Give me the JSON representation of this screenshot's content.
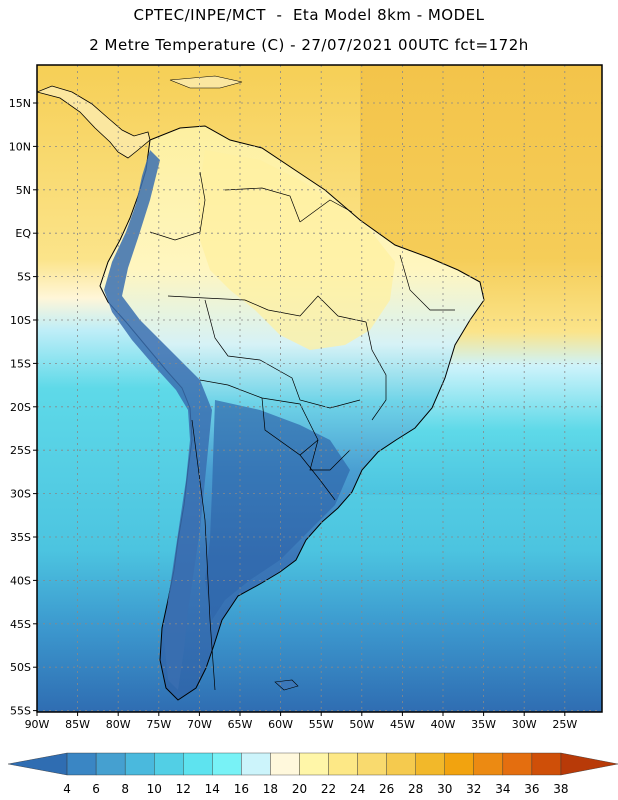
{
  "title_line1": "CPTEC/INPE/MCT  -  Eta Model 8km - MODEL",
  "title_line2": "2 Metre Temperature (C) - 27/07/2021 00UTC fct=172h",
  "lat_labels": [
    "15N",
    "10N",
    "5N",
    "EQ",
    "5S",
    "10S",
    "15S",
    "20S",
    "25S",
    "30S",
    "35S",
    "40S",
    "45S",
    "50S",
    "55S"
  ],
  "lon_labels": [
    "90W",
    "85W",
    "80W",
    "75W",
    "70W",
    "65W",
    "60W",
    "55W",
    "50W",
    "45W",
    "40W",
    "35W",
    "30W",
    "25W"
  ],
  "colorbar": {
    "labels": [
      "4",
      "6",
      "8",
      "10",
      "12",
      "14",
      "16",
      "18",
      "20",
      "22",
      "24",
      "26",
      "28",
      "30",
      "32",
      "34",
      "36",
      "38"
    ],
    "colors": [
      "#2f6db2",
      "#3a86c4",
      "#45a0d0",
      "#4ab9dd",
      "#52cfe5",
      "#5ee3ef",
      "#78f2f6",
      "#ccf4fb",
      "#fff8dc",
      "#fff6a8",
      "#fde886",
      "#f9da6e",
      "#f5ca4e",
      "#f2b82a",
      "#f2a30f",
      "#ec8a12",
      "#e46e0f",
      "#cf4f08",
      "#b83a08"
    ]
  },
  "map_colors": {
    "ocean_north": "#f6cf56",
    "ocean_mid": "#fbe48a",
    "ocean_cyan": "#5ed9e8",
    "ocean_blue": "#3c98ce",
    "ocean_dark": "#2f6db2",
    "land_warm": "#fdf0a0",
    "land_cool": "#6fd4e8",
    "land_cold": "#3b77b8",
    "border": "#000000"
  }
}
